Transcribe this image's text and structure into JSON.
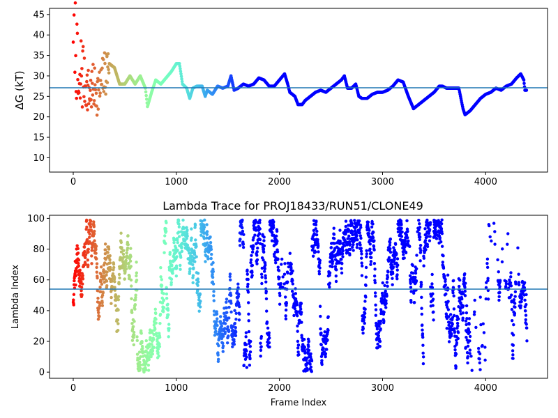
{
  "chart_data": [
    {
      "type": "scatter",
      "title": "",
      "xlabel": "",
      "ylabel": "ΔG (kT)",
      "xlim": [
        -230,
        4600
      ],
      "ylim": [
        6.5,
        46.5
      ],
      "xticks": [
        0,
        1000,
        2000,
        3000,
        4000
      ],
      "yticks": [
        10,
        15,
        20,
        25,
        30,
        35,
        40,
        45
      ],
      "colormap": "rainbow (red at early frames → violet at late frames)",
      "reference_line": {
        "y": 27.1,
        "color": "#1f77b4"
      },
      "trend_points": [
        [
          0,
          44
        ],
        [
          20,
          40
        ],
        [
          40,
          30
        ],
        [
          60,
          22
        ],
        [
          80,
          33
        ],
        [
          100,
          29
        ],
        [
          150,
          26
        ],
        [
          200,
          27
        ],
        [
          250,
          26
        ],
        [
          300,
          30
        ],
        [
          350,
          33
        ],
        [
          400,
          32
        ],
        [
          450,
          28
        ],
        [
          500,
          28
        ],
        [
          550,
          30
        ],
        [
          600,
          28
        ],
        [
          650,
          30
        ],
        [
          700,
          27
        ],
        [
          720,
          22.5
        ],
        [
          760,
          26
        ],
        [
          800,
          29
        ],
        [
          850,
          28
        ],
        [
          900,
          29.5
        ],
        [
          950,
          31
        ],
        [
          1000,
          33
        ],
        [
          1030,
          33
        ],
        [
          1060,
          28
        ],
        [
          1100,
          27
        ],
        [
          1130,
          24.5
        ],
        [
          1160,
          27
        ],
        [
          1200,
          27.5
        ],
        [
          1250,
          27.5
        ],
        [
          1280,
          25
        ],
        [
          1300,
          26.5
        ],
        [
          1350,
          25.5
        ],
        [
          1400,
          27.5
        ],
        [
          1450,
          27
        ],
        [
          1500,
          27.5
        ],
        [
          1530,
          30
        ],
        [
          1560,
          26.5
        ],
        [
          1600,
          27
        ],
        [
          1650,
          28
        ],
        [
          1700,
          27.5
        ],
        [
          1750,
          28
        ],
        [
          1800,
          29.5
        ],
        [
          1850,
          29
        ],
        [
          1900,
          27.5
        ],
        [
          1950,
          27.5
        ],
        [
          2000,
          29
        ],
        [
          2050,
          30.5
        ],
        [
          2080,
          28
        ],
        [
          2100,
          26
        ],
        [
          2150,
          25
        ],
        [
          2180,
          23
        ],
        [
          2220,
          23
        ],
        [
          2250,
          24
        ],
        [
          2300,
          25
        ],
        [
          2350,
          26
        ],
        [
          2400,
          26.5
        ],
        [
          2450,
          26
        ],
        [
          2500,
          27
        ],
        [
          2550,
          28
        ],
        [
          2600,
          29
        ],
        [
          2630,
          30
        ],
        [
          2660,
          27
        ],
        [
          2700,
          27
        ],
        [
          2740,
          28
        ],
        [
          2770,
          25
        ],
        [
          2800,
          24.5
        ],
        [
          2850,
          24.5
        ],
        [
          2900,
          25.5
        ],
        [
          2950,
          26
        ],
        [
          3000,
          26
        ],
        [
          3050,
          26.5
        ],
        [
          3100,
          27.5
        ],
        [
          3150,
          29
        ],
        [
          3200,
          28.5
        ],
        [
          3250,
          25
        ],
        [
          3300,
          22
        ],
        [
          3350,
          23
        ],
        [
          3400,
          24
        ],
        [
          3450,
          25
        ],
        [
          3500,
          26
        ],
        [
          3550,
          27.5
        ],
        [
          3580,
          27.5
        ],
        [
          3620,
          27
        ],
        [
          3700,
          27
        ],
        [
          3740,
          27
        ],
        [
          3780,
          22
        ],
        [
          3800,
          20.5
        ],
        [
          3850,
          21.5
        ],
        [
          3900,
          23
        ],
        [
          3950,
          24.5
        ],
        [
          4000,
          25.5
        ],
        [
          4050,
          26
        ],
        [
          4100,
          27
        ],
        [
          4150,
          26.5
        ],
        [
          4200,
          27.5
        ],
        [
          4250,
          28
        ],
        [
          4300,
          29.5
        ],
        [
          4340,
          30.5
        ],
        [
          4370,
          29
        ],
        [
          4380,
          26.5
        ],
        [
          4400,
          26.5
        ]
      ]
    },
    {
      "type": "scatter",
      "title": "Lambda Trace for PROJ18433/RUN51/CLONE49",
      "xlabel": "Frame Index",
      "ylabel": "Lambda Index",
      "xlim": [
        -230,
        4600
      ],
      "ylim": [
        -4,
        102
      ],
      "xticks": [
        0,
        1000,
        2000,
        3000,
        4000
      ],
      "yticks": [
        0,
        20,
        40,
        60,
        80,
        100
      ],
      "colormap": "rainbow (red at early frames → violet at late frames)",
      "reference_line": {
        "y": 54,
        "color": "#1f77b4"
      },
      "value_range": [
        0,
        99
      ],
      "frame_range": [
        0,
        4400
      ],
      "sparse_regions": [
        {
          "x": [
            2000,
            2100
          ],
          "y": [
            60,
            99
          ]
        },
        {
          "x": [
            3250,
            3350
          ],
          "y": [
            70,
            99
          ]
        },
        {
          "x": [
            3800,
            4400
          ],
          "y": [
            60,
            99
          ]
        },
        {
          "x": [
            3850,
            4150
          ],
          "y": [
            0,
            45
          ]
        }
      ]
    }
  ]
}
